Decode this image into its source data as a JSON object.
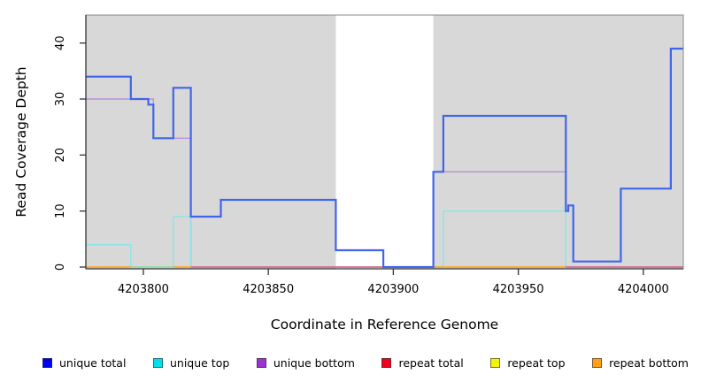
{
  "chart_data": {
    "type": "line",
    "subtype": "step-coverage-plot",
    "title": "",
    "xlabel": "Coordinate in Reference Genome",
    "ylabel": "Read Coverage Depth",
    "xlim": [
      4203777,
      4204016
    ],
    "ylim": [
      0,
      45
    ],
    "xticks": [
      4203800,
      4203850,
      4203900,
      4203950,
      4204000
    ],
    "xtick_labels": [
      "4203800",
      "4203850",
      "4203900",
      "4203950",
      "4204000"
    ],
    "yticks": [
      0,
      10,
      20,
      30,
      40
    ],
    "ytick_labels": [
      "0",
      "10",
      "20",
      "30",
      "40"
    ],
    "grid": false,
    "legend_position": "bottom",
    "plot_bg_color": "#d8d8d8",
    "highlight_band_color": "#ffffff",
    "background_bands": [
      {
        "from": 4203777,
        "to": 4203877,
        "color": "#d8d8d8"
      },
      {
        "from": 4203877,
        "to": 4203916,
        "color": "#ffffff"
      },
      {
        "from": 4203916,
        "to": 4204016,
        "color": "#d8d8d8"
      }
    ],
    "series": [
      {
        "name": "unique bottom",
        "line_color": "#bb8fdc",
        "line_width": 1.4,
        "steps": [
          [
            4203777,
            30
          ],
          [
            4203804,
            23
          ],
          [
            4203819,
            0
          ],
          [
            4203916,
            17
          ],
          [
            4203969,
            0
          ],
          [
            4204016,
            0
          ]
        ]
      },
      {
        "name": "unique top",
        "line_color": "#8ce4e8",
        "line_width": 1.4,
        "steps": [
          [
            4203777,
            4
          ],
          [
            4203795,
            0
          ],
          [
            4203812,
            9
          ],
          [
            4203819,
            0
          ],
          [
            4203920,
            10
          ],
          [
            4203969,
            0
          ],
          [
            4204016,
            0
          ]
        ]
      },
      {
        "name": "unique total",
        "line_color": "#4064ec",
        "line_width": 2.2,
        "steps": [
          [
            4203777,
            34
          ],
          [
            4203795,
            30
          ],
          [
            4203802,
            29
          ],
          [
            4203804,
            23
          ],
          [
            4203812,
            32
          ],
          [
            4203819,
            9
          ],
          [
            4203831,
            12
          ],
          [
            4203877,
            3
          ],
          [
            4203896,
            0
          ],
          [
            4203916,
            17
          ],
          [
            4203920,
            27
          ],
          [
            4203969,
            10
          ],
          [
            4203970,
            11
          ],
          [
            4203972,
            1
          ],
          [
            4203991,
            14
          ],
          [
            4204011,
            39
          ],
          [
            4204016,
            39
          ]
        ]
      }
    ],
    "baseline_segments": [
      {
        "from": 4203777,
        "to": 4203795,
        "color": "#ff9d00",
        "series": "repeat bottom"
      },
      {
        "from": 4203795,
        "to": 4203812,
        "color": "#8cd89c",
        "series": "unique top over repeat top"
      },
      {
        "from": 4203812,
        "to": 4203819,
        "color": "#ff9d00",
        "series": "repeat bottom"
      },
      {
        "from": 4203819,
        "to": 4203896,
        "color": "#e05c80",
        "series": "repeat total"
      },
      {
        "from": 4203916,
        "to": 4203969,
        "color": "#ff9d00",
        "series": "repeat bottom"
      },
      {
        "from": 4203969,
        "to": 4204016,
        "color": "#e05c80",
        "series": "repeat total"
      }
    ],
    "legend": [
      {
        "label": "unique total",
        "color": "#0000f0"
      },
      {
        "label": "unique top",
        "color": "#00e0e8"
      },
      {
        "label": "unique bottom",
        "color": "#9c35cc"
      },
      {
        "label": "repeat total",
        "color": "#f20022"
      },
      {
        "label": "repeat top",
        "color": "#f4f400"
      },
      {
        "label": "repeat bottom",
        "color": "#ffa018"
      }
    ]
  }
}
